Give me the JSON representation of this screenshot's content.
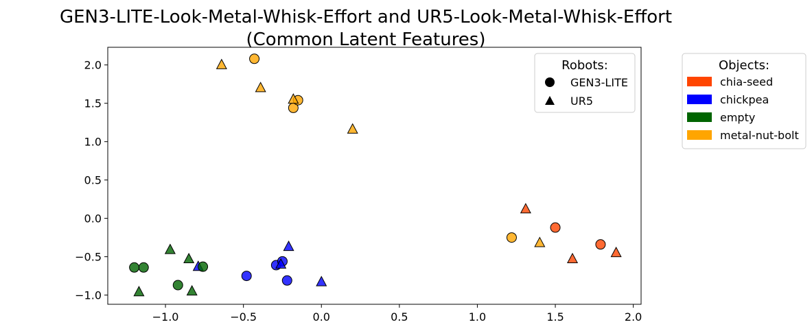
{
  "chart_data": {
    "type": "scatter",
    "title": "GEN3-LITE-Look-Metal-Whisk-Effort and UR5-Look-Metal-Whisk-Effort",
    "subtitle": "(Common Latent Features)",
    "xlabel": "",
    "ylabel": "",
    "xlim": [
      -1.37,
      2.05
    ],
    "ylim": [
      -1.12,
      2.23
    ],
    "xticks": [
      -1.0,
      -0.5,
      0.0,
      0.5,
      1.0,
      1.5,
      2.0
    ],
    "xtick_labels": [
      "−1.0",
      "−0.5",
      "0.0",
      "0.5",
      "1.0",
      "1.5",
      "2.0"
    ],
    "yticks": [
      -1.0,
      -0.5,
      0.0,
      0.5,
      1.0,
      1.5,
      2.0
    ],
    "ytick_labels": [
      "−1.0",
      "−0.5",
      "0.0",
      "0.5",
      "1.0",
      "1.5",
      "2.0"
    ],
    "grid": false,
    "legend_robots": {
      "title": "Robots:",
      "placement": "top-right inside",
      "entries": [
        {
          "label": "GEN3-LITE",
          "marker": "circle"
        },
        {
          "label": "UR5",
          "marker": "triangle"
        }
      ]
    },
    "legend_objects": {
      "title": "Objects:",
      "placement": "outside right",
      "entries": [
        {
          "label": "chia-seed",
          "color": "#ff4500"
        },
        {
          "label": "chickpea",
          "color": "#0000ff"
        },
        {
          "label": "empty",
          "color": "#006400"
        },
        {
          "label": "metal-nut-bolt",
          "color": "#ffa500"
        }
      ]
    },
    "series": [
      {
        "object": "chia-seed",
        "robot": "GEN3-LITE",
        "points": [
          [
            1.5,
            -0.12
          ],
          [
            1.79,
            -0.34
          ]
        ]
      },
      {
        "object": "chia-seed",
        "robot": "UR5",
        "points": [
          [
            1.31,
            0.12
          ],
          [
            1.61,
            -0.53
          ],
          [
            1.89,
            -0.45
          ]
        ]
      },
      {
        "object": "chickpea",
        "robot": "GEN3-LITE",
        "points": [
          [
            -0.48,
            -0.75
          ],
          [
            -0.29,
            -0.61
          ],
          [
            -0.25,
            -0.56
          ],
          [
            -0.22,
            -0.81
          ]
        ]
      },
      {
        "object": "chickpea",
        "robot": "UR5",
        "points": [
          [
            -0.79,
            -0.63
          ],
          [
            -0.26,
            -0.6
          ],
          [
            -0.21,
            -0.37
          ],
          [
            0.0,
            -0.83
          ]
        ]
      },
      {
        "object": "empty",
        "robot": "GEN3-LITE",
        "points": [
          [
            -1.2,
            -0.64
          ],
          [
            -1.14,
            -0.64
          ],
          [
            -0.92,
            -0.87
          ],
          [
            -0.76,
            -0.63
          ]
        ]
      },
      {
        "object": "empty",
        "robot": "UR5",
        "points": [
          [
            -1.17,
            -0.96
          ],
          [
            -0.97,
            -0.41
          ],
          [
            -0.85,
            -0.53
          ],
          [
            -0.83,
            -0.95
          ]
        ]
      },
      {
        "object": "metal-nut-bolt",
        "robot": "GEN3-LITE",
        "points": [
          [
            -0.43,
            2.08
          ],
          [
            -0.18,
            1.44
          ],
          [
            -0.15,
            1.54
          ],
          [
            1.22,
            -0.25
          ]
        ]
      },
      {
        "object": "metal-nut-bolt",
        "robot": "UR5",
        "points": [
          [
            -0.64,
            2.0
          ],
          [
            -0.39,
            1.7
          ],
          [
            -0.18,
            1.55
          ],
          [
            0.2,
            1.16
          ],
          [
            1.4,
            -0.32
          ]
        ]
      }
    ]
  }
}
